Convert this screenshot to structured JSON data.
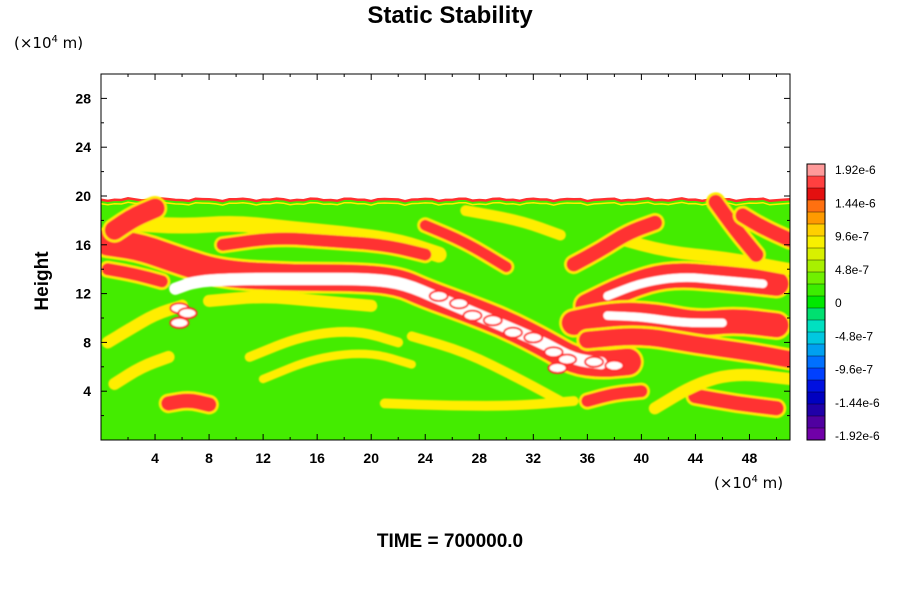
{
  "chart_data": {
    "type": "heatmap",
    "title": "Static Stability",
    "ylabel": "Height",
    "x_unit": {
      "prefix": "(×10",
      "exp": "4",
      "suffix": " m)"
    },
    "y_unit": {
      "prefix": "(×10",
      "exp": "4",
      "suffix": " m)"
    },
    "xlim": [
      0,
      51
    ],
    "ylim": [
      0,
      30
    ],
    "x_ticks": [
      4,
      8,
      12,
      16,
      20,
      24,
      28,
      32,
      36,
      40,
      44,
      48
    ],
    "y_ticks": [
      4,
      8,
      12,
      16,
      20,
      24,
      28
    ],
    "data_top": 19.7,
    "colorbar": {
      "labels": [
        "1.92e-6",
        "1.44e-6",
        "9.6e-7",
        "4.8e-7",
        "0",
        "-4.8e-7",
        "-9.6e-7",
        "-1.44e-6",
        "-1.92e-6"
      ],
      "colors": [
        "#ff9a9a",
        "#ff4040",
        "#e41010",
        "#ff7010",
        "#ff9a00",
        "#ffd000",
        "#f8f000",
        "#d8f000",
        "#a8f000",
        "#70f000",
        "#3ced00",
        "#00e800",
        "#00e070",
        "#00e0c0",
        "#00c8e0",
        "#00a0f0",
        "#0070ff",
        "#0040ff",
        "#0010e0",
        "#0000c0",
        "#2000a8",
        "#5000a0",
        "#7000a8"
      ]
    },
    "field_background": "#44ec00",
    "features": [
      {
        "kind": "band",
        "color": "#ff3030",
        "width": 2.2,
        "points": [
          [
            0.5,
            16.2
          ],
          [
            3,
            15.8
          ],
          [
            6,
            14.6
          ],
          [
            9,
            13.6
          ],
          [
            14,
            13.3
          ],
          [
            19,
            13.3
          ],
          [
            22,
            13.0
          ],
          [
            24,
            12.0
          ],
          [
            27,
            10.8
          ],
          [
            30,
            9.5
          ],
          [
            33,
            7.8
          ],
          [
            35,
            6.5
          ],
          [
            37,
            6.2
          ],
          [
            39,
            6.4
          ]
        ]
      },
      {
        "kind": "band",
        "color": "#ffffff",
        "width": 1.0,
        "points": [
          [
            5.5,
            12.4
          ],
          [
            7,
            13.0
          ],
          [
            10,
            13.2
          ],
          [
            15,
            13.2
          ],
          [
            20,
            13.2
          ],
          [
            22.5,
            12.8
          ],
          [
            25,
            11.6
          ],
          [
            28,
            10.2
          ],
          [
            31,
            8.8
          ],
          [
            33,
            7.8
          ],
          [
            35,
            6.6
          ],
          [
            37,
            6.3
          ]
        ]
      },
      {
        "kind": "band",
        "color": "#ffee00",
        "width": 1.3,
        "points": [
          [
            2,
            17.8
          ],
          [
            6,
            17.5
          ],
          [
            10,
            17.8
          ],
          [
            14,
            17.3
          ],
          [
            18,
            16.9
          ],
          [
            22,
            16.3
          ],
          [
            25,
            15.2
          ]
        ]
      },
      {
        "kind": "band",
        "color": "#ff3030",
        "width": 1.0,
        "points": [
          [
            9,
            16.0
          ],
          [
            13,
            16.6
          ],
          [
            17,
            16.3
          ],
          [
            21,
            16.0
          ],
          [
            24,
            15.2
          ]
        ]
      },
      {
        "kind": "band",
        "color": "#ffee00",
        "width": 1.0,
        "points": [
          [
            8,
            11.4
          ],
          [
            12,
            11.8
          ],
          [
            16,
            11.4
          ],
          [
            20,
            11.0
          ]
        ]
      },
      {
        "kind": "band",
        "color": "#ff3030",
        "width": 2.0,
        "points": [
          [
            36,
            11.0
          ],
          [
            39,
            12.6
          ],
          [
            42,
            13.6
          ],
          [
            46,
            13.3
          ],
          [
            50,
            12.8
          ]
        ]
      },
      {
        "kind": "band",
        "color": "#ffffff",
        "width": 0.7,
        "points": [
          [
            37.5,
            11.8
          ],
          [
            40,
            12.9
          ],
          [
            43,
            13.4
          ],
          [
            46,
            13.1
          ],
          [
            49,
            12.8
          ]
        ]
      },
      {
        "kind": "band",
        "color": "#ff3030",
        "width": 2.0,
        "points": [
          [
            35,
            9.6
          ],
          [
            38,
            10.3
          ],
          [
            41,
            10.2
          ],
          [
            44,
            9.5
          ],
          [
            47,
            9.8
          ],
          [
            50,
            9.4
          ]
        ]
      },
      {
        "kind": "band",
        "color": "#ffffff",
        "width": 0.7,
        "points": [
          [
            37.5,
            10.2
          ],
          [
            40,
            10.1
          ],
          [
            43,
            9.6
          ],
          [
            46,
            9.6
          ]
        ]
      },
      {
        "kind": "band",
        "color": "#ff3030",
        "width": 1.4,
        "points": [
          [
            36,
            8.2
          ],
          [
            40,
            8.6
          ],
          [
            44,
            7.8
          ],
          [
            48,
            7.2
          ],
          [
            51,
            6.6
          ]
        ]
      },
      {
        "kind": "band",
        "color": "#ffee00",
        "width": 1.0,
        "points": [
          [
            38,
            16.6
          ],
          [
            42,
            15.4
          ],
          [
            46,
            15.0
          ],
          [
            51,
            14.0
          ]
        ]
      },
      {
        "kind": "band",
        "color": "#ff3030",
        "width": 1.2,
        "points": [
          [
            35,
            14.4
          ],
          [
            37,
            15.6
          ],
          [
            39,
            17.0
          ],
          [
            41,
            17.8
          ]
        ]
      },
      {
        "kind": "band",
        "color": "#ff3030",
        "width": 1.6,
        "points": [
          [
            1,
            17.2
          ],
          [
            2.5,
            18.3
          ],
          [
            4,
            19.0
          ]
        ]
      },
      {
        "kind": "band",
        "color": "#ff3030",
        "width": 1.0,
        "points": [
          [
            0.5,
            14.0
          ],
          [
            2.5,
            13.6
          ],
          [
            4.5,
            13.0
          ]
        ]
      },
      {
        "kind": "band",
        "color": "#ffee00",
        "width": 1.0,
        "points": [
          [
            0.5,
            8.0
          ],
          [
            2,
            9.0
          ],
          [
            4,
            10.3
          ],
          [
            6,
            11.0
          ]
        ]
      },
      {
        "kind": "band",
        "color": "#ffee00",
        "width": 1.0,
        "points": [
          [
            1,
            4.6
          ],
          [
            3,
            6.0
          ],
          [
            5,
            6.8
          ]
        ]
      },
      {
        "kind": "band",
        "color": "#ff3030",
        "width": 1.2,
        "points": [
          [
            5,
            3.0
          ],
          [
            6.5,
            3.3
          ],
          [
            8,
            2.9
          ]
        ]
      },
      {
        "kind": "band",
        "color": "#ffee00",
        "width": 0.8,
        "points": [
          [
            11,
            6.8
          ],
          [
            15,
            8.6
          ],
          [
            19,
            9.0
          ],
          [
            22,
            8.0
          ]
        ]
      },
      {
        "kind": "band",
        "color": "#ffee00",
        "width": 0.7,
        "points": [
          [
            12,
            5.0
          ],
          [
            16,
            6.8
          ],
          [
            20,
            7.2
          ],
          [
            23,
            6.2
          ]
        ]
      },
      {
        "kind": "band",
        "color": "#ffee00",
        "width": 0.8,
        "points": [
          [
            23,
            8.5
          ],
          [
            27,
            7.2
          ],
          [
            31,
            5.0
          ],
          [
            34,
            3.2
          ]
        ]
      },
      {
        "kind": "band",
        "color": "#ffee00",
        "width": 0.8,
        "points": [
          [
            21,
            3.0
          ],
          [
            26,
            2.8
          ],
          [
            31,
            2.8
          ],
          [
            35,
            3.2
          ]
        ]
      },
      {
        "kind": "band",
        "color": "#ff3030",
        "width": 1.0,
        "points": [
          [
            36,
            3.2
          ],
          [
            38,
            3.8
          ],
          [
            40,
            4.0
          ]
        ]
      },
      {
        "kind": "band",
        "color": "#ff3030",
        "width": 1.2,
        "points": [
          [
            44,
            3.6
          ],
          [
            47,
            3.0
          ],
          [
            50,
            2.6
          ]
        ]
      },
      {
        "kind": "band",
        "color": "#ffee00",
        "width": 1.0,
        "points": [
          [
            41,
            2.6
          ],
          [
            44,
            4.6
          ],
          [
            47,
            5.5
          ],
          [
            51,
            5.0
          ]
        ]
      },
      {
        "kind": "band",
        "color": "#ff3030",
        "width": 1.2,
        "points": [
          [
            45.5,
            19.5
          ],
          [
            47,
            17.2
          ],
          [
            48.5,
            15.2
          ]
        ]
      },
      {
        "kind": "band",
        "color": "#ff3030",
        "width": 1.2,
        "points": [
          [
            47.5,
            18.4
          ],
          [
            49,
            17.4
          ],
          [
            51,
            16.4
          ]
        ]
      },
      {
        "kind": "band",
        "color": "#ffee00",
        "width": 0.9,
        "points": [
          [
            27,
            18.8
          ],
          [
            31,
            18.0
          ],
          [
            34,
            16.8
          ]
        ]
      },
      {
        "kind": "band",
        "color": "#ff3030",
        "width": 0.9,
        "points": [
          [
            24,
            17.6
          ],
          [
            27,
            16.2
          ],
          [
            30,
            14.2
          ]
        ]
      },
      {
        "kind": "blob",
        "color": "#ffffff",
        "ring": "#ff2a2a",
        "points": [
          [
            5.8,
            10.8
          ],
          [
            5.8,
            9.6
          ],
          [
            6.4,
            10.4
          ],
          [
            25,
            11.8
          ],
          [
            26.5,
            11.2
          ],
          [
            27.5,
            10.2
          ],
          [
            29,
            9.8
          ],
          [
            30.5,
            8.8
          ],
          [
            32,
            8.4
          ],
          [
            33.5,
            7.2
          ],
          [
            34.5,
            6.6
          ],
          [
            36.5,
            6.4
          ],
          [
            38,
            6.1
          ],
          [
            33.8,
            5.9
          ]
        ]
      }
    ],
    "footer": "TIME = 700000.0"
  }
}
